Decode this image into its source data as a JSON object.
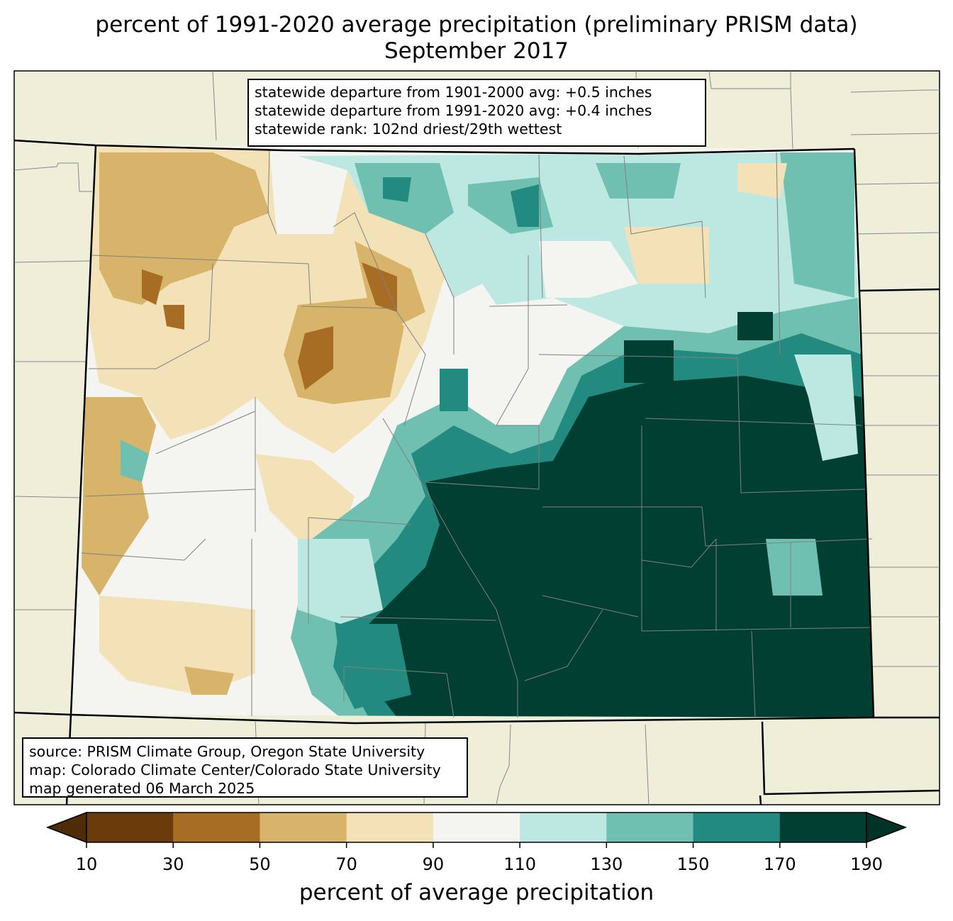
{
  "title": {
    "line1": "percent of 1991-2020 average precipitation (preliminary PRISM data)",
    "line2": "September 2017"
  },
  "stats_box": {
    "lines": [
      "statewide departure from 1901-2000 avg: +0.5 inches",
      "statewide departure from 1991-2020 avg: +0.4 inches",
      "statewide rank: 102nd driest/29th wettest"
    ]
  },
  "source_box": {
    "lines": [
      "source: PRISM Climate Group, Oregon State University",
      "map: Colorado Climate Center/Colorado State University",
      "map generated 06 March 2025"
    ]
  },
  "colorbar": {
    "title": "percent of average precipitation",
    "ticks": [
      "10",
      "30",
      "50",
      "70",
      "90",
      "110",
      "130",
      "150",
      "170",
      "190"
    ],
    "colors": [
      "#6b3c0b",
      "#a86d24",
      "#d8b46a",
      "#f3e2b8",
      "#f4f4f1",
      "#bde8e1",
      "#6fc0b1",
      "#238a80",
      "#013f33"
    ],
    "under_color": "#4e2c08",
    "over_color": "#003328"
  },
  "map_colors": {
    "background": "#efeed9",
    "outside_state": "#efeed9"
  }
}
